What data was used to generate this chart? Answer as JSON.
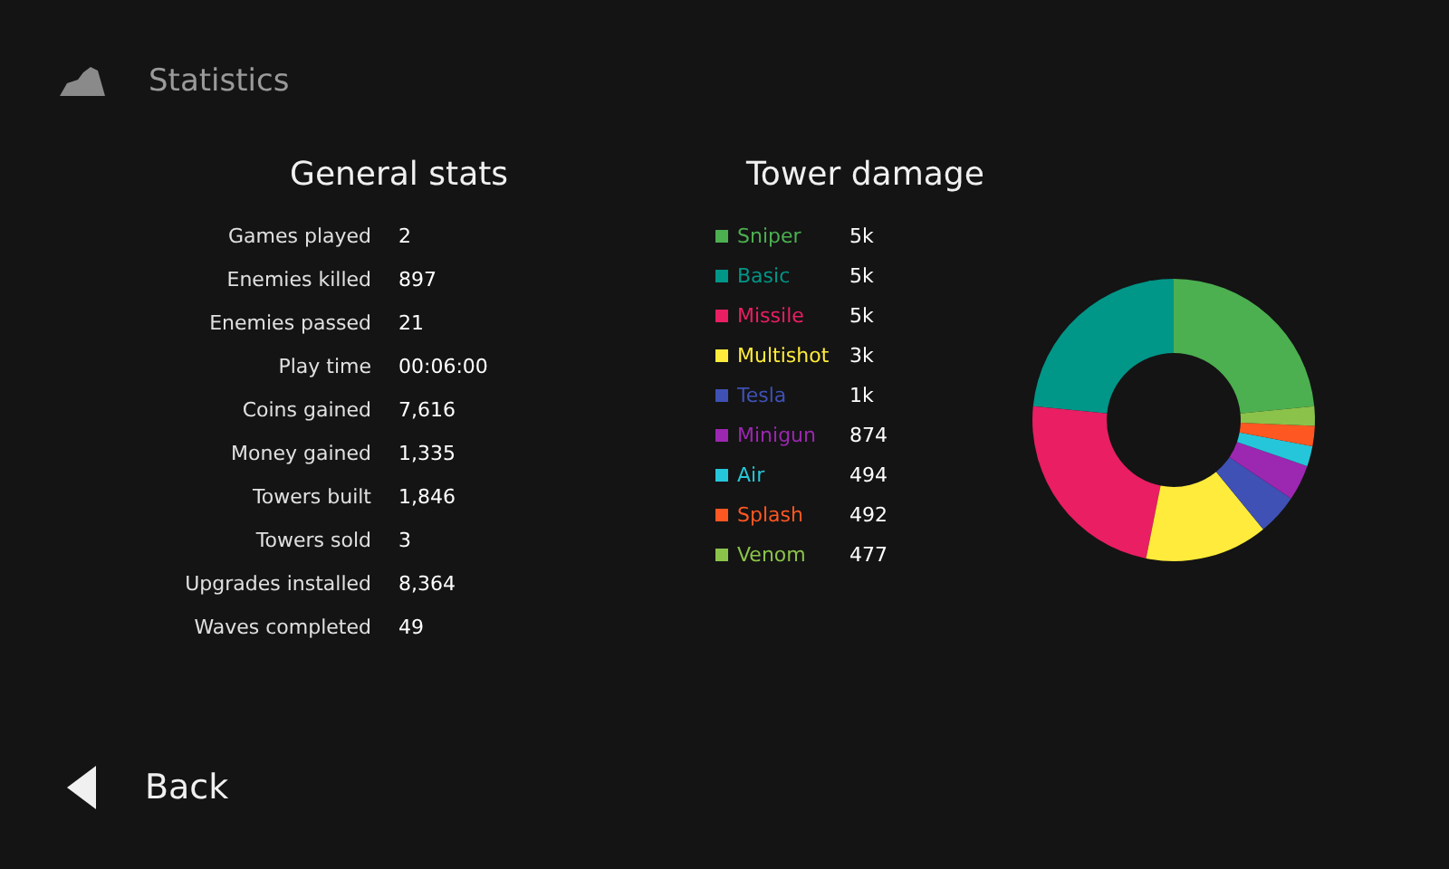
{
  "chart_data": [
    {
      "type": "other",
      "title": "General stats",
      "annotations": [
        "Statistics",
        "Back"
      ],
      "categories": [
        "Games played",
        "Enemies killed",
        "Enemies passed",
        "Play time",
        "Coins gained",
        "Money gained",
        "Towers built",
        "Towers sold",
        "Upgrades installed",
        "Waves completed"
      ],
      "value_labels": [
        "2",
        "897",
        "21",
        "00:06:00",
        "7,616",
        "1,335",
        "1,846",
        "3",
        "8,364",
        "49"
      ]
    },
    {
      "type": "donut",
      "title": "Tower damage",
      "legend": "left",
      "categories": [
        "Sniper",
        "Basic",
        "Missile",
        "Multishot",
        "Tesla",
        "Minigun",
        "Air",
        "Splash",
        "Venom"
      ],
      "values": [
        5000,
        5000,
        5000,
        3000,
        1000,
        874,
        494,
        492,
        477
      ],
      "value_labels": [
        "5k",
        "5k",
        "5k",
        "3k",
        "1k",
        "874",
        "494",
        "492",
        "477"
      ],
      "colors": [
        "#4caf50",
        "#009688",
        "#e91e63",
        "#ffeb3b",
        "#3f51b5",
        "#9c27b0",
        "#26c6da",
        "#ff5722",
        "#8bc34a"
      ]
    }
  ]
}
